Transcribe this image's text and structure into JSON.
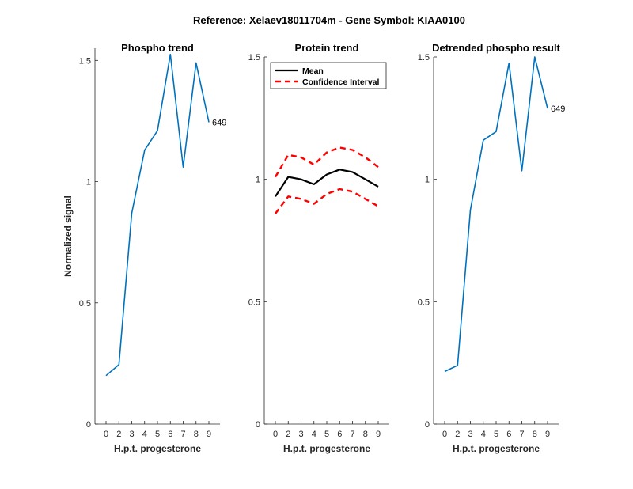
{
  "figure": {
    "suptitle": "Reference:  Xelaev18011704m - Gene Symbol:  KIAA0100"
  },
  "chart_data": [
    {
      "type": "line",
      "title": "Phospho trend",
      "xlabel": "H.p.t. progesterone",
      "ylabel": "Normalized signal",
      "categories": [
        "0",
        "2",
        "3",
        "4",
        "5",
        "6",
        "7",
        "8",
        "9"
      ],
      "ylim": [
        0,
        1.55
      ],
      "yticks": [
        0,
        0.5,
        1,
        1.5
      ],
      "ytick_labels": [
        "0",
        "0.5",
        "1",
        "1.5"
      ],
      "series": [
        {
          "values": [
            0.2,
            0.245,
            0.87,
            1.13,
            1.21,
            1.525,
            1.06,
            1.49,
            1.245
          ],
          "color": "#0072BD",
          "style": "solid",
          "end_label": "649"
        }
      ]
    },
    {
      "type": "line",
      "title": "Protein trend",
      "xlabel": "H.p.t. progesterone",
      "ylabel": "",
      "categories": [
        "0",
        "2",
        "3",
        "4",
        "5",
        "6",
        "7",
        "8",
        "9"
      ],
      "ylim": [
        0,
        1.5
      ],
      "yticks": [
        0,
        0.5,
        1,
        1.5
      ],
      "ytick_labels": [
        "0",
        "0.5",
        "1",
        "1.5"
      ],
      "legend": {
        "location": "top-right"
      },
      "series": [
        {
          "name": "Mean",
          "values": [
            0.93,
            1.01,
            1.0,
            0.98,
            1.02,
            1.04,
            1.03,
            1.0,
            0.97
          ],
          "color": "#000000",
          "style": "solid"
        },
        {
          "name": "Confidence Interval",
          "values": [
            1.01,
            1.1,
            1.09,
            1.06,
            1.11,
            1.13,
            1.12,
            1.09,
            1.05
          ],
          "color": "#FF0000",
          "style": "dashed"
        },
        {
          "values": [
            0.86,
            0.93,
            0.92,
            0.9,
            0.94,
            0.96,
            0.95,
            0.92,
            0.89
          ],
          "color": "#FF0000",
          "style": "dashed"
        }
      ]
    },
    {
      "type": "line",
      "title": "Detrended phospho result",
      "xlabel": "H.p.t. progesterone",
      "ylabel": "",
      "categories": [
        "0",
        "2",
        "3",
        "4",
        "5",
        "6",
        "7",
        "8",
        "9"
      ],
      "ylim": [
        0,
        1.5
      ],
      "yticks": [
        0,
        0.5,
        1,
        1.5
      ],
      "ytick_labels": [
        "0",
        "0.5",
        "1",
        "1.5"
      ],
      "series": [
        {
          "values": [
            0.215,
            0.24,
            0.875,
            1.16,
            1.195,
            1.475,
            1.035,
            1.5,
            1.29
          ],
          "color": "#0072BD",
          "style": "solid",
          "end_label": "649"
        }
      ]
    }
  ]
}
